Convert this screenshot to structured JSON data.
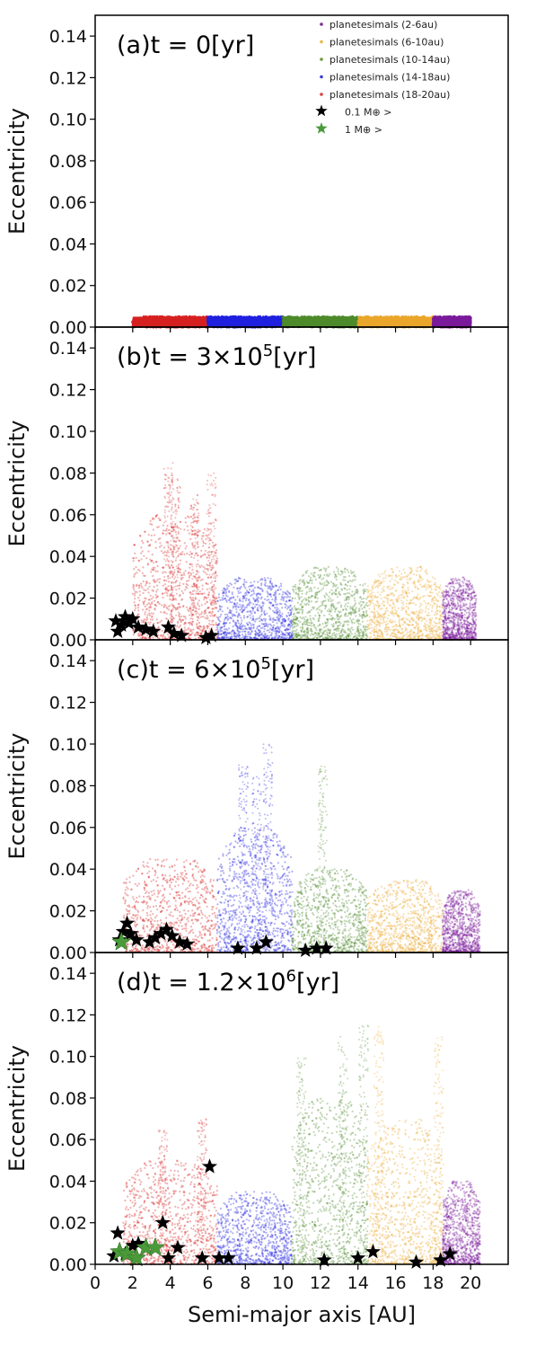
{
  "figure": {
    "xlabel": "Semi-major axis [AU]",
    "ylabel": "Eccentricity"
  },
  "legend": [
    {
      "label": "planetesimals (2-6au)",
      "color": "#7b2d8e",
      "marker": "dot"
    },
    {
      "label": "planetesimals (6-10au)",
      "color": "#e8b84a",
      "marker": "dot"
    },
    {
      "label": "planetesimals (10-14au)",
      "color": "#6b9a3a",
      "marker": "dot"
    },
    {
      "label": "planetesimals (14-18au)",
      "color": "#3a3ad8",
      "marker": "dot"
    },
    {
      "label": "planetesimals (18-20au)",
      "color": "#d94040",
      "marker": "dot"
    },
    {
      "label": "0.1 M⊕ >",
      "color": "#000000",
      "marker": "star"
    },
    {
      "label": "1 M⊕ >",
      "color": "#4a9a3a",
      "marker": "star"
    }
  ],
  "chart_data": [
    {
      "type": "scatter",
      "panel_label": "(a)t = 0[yr]",
      "xlim": [
        0,
        22
      ],
      "ylim": [
        0,
        0.15
      ],
      "xticks": [
        "0",
        "2",
        "4",
        "6",
        "8",
        "10",
        "12",
        "14",
        "16",
        "18",
        "20"
      ],
      "yticks": [
        "0.00",
        "0.02",
        "0.04",
        "0.06",
        "0.08",
        "0.10",
        "0.12",
        "0.14"
      ],
      "bands": [
        {
          "x_range": [
            2,
            6
          ],
          "color": "#d62020",
          "e_max": 0.005
        },
        {
          "x_range": [
            6,
            10
          ],
          "color": "#1f1fe0",
          "e_max": 0.005
        },
        {
          "x_range": [
            10,
            14
          ],
          "color": "#4d8a2a",
          "e_max": 0.005
        },
        {
          "x_range": [
            14,
            18
          ],
          "color": "#eaa62a",
          "e_max": 0.005
        },
        {
          "x_range": [
            18,
            20
          ],
          "color": "#7a1a9a",
          "e_max": 0.005
        }
      ],
      "stars_small": [],
      "stars_large": []
    },
    {
      "type": "scatter",
      "panel_label": "(b)t = 3×10^5[yr]",
      "xlim": [
        0,
        22
      ],
      "ylim": [
        0,
        0.15
      ],
      "xticks": [
        "0",
        "2",
        "4",
        "6",
        "8",
        "10",
        "12",
        "14",
        "16",
        "18",
        "20"
      ],
      "yticks": [
        "0.00",
        "0.02",
        "0.04",
        "0.06",
        "0.08",
        "0.10",
        "0.12",
        "0.14"
      ],
      "bands": [
        {
          "x_range": [
            2,
            6.5
          ],
          "color": "#d62020",
          "e_max": 0.06,
          "spikes": [
            [
              3.9,
              0.085
            ],
            [
              4.3,
              0.078
            ],
            [
              5.3,
              0.07
            ],
            [
              6.2,
              0.08
            ]
          ]
        },
        {
          "x_range": [
            6.5,
            10.5
          ],
          "color": "#1f1fe0",
          "e_max": 0.03
        },
        {
          "x_range": [
            10.5,
            14.5
          ],
          "color": "#4d8a2a",
          "e_max": 0.035
        },
        {
          "x_range": [
            14.5,
            18.5
          ],
          "color": "#eaa62a",
          "e_max": 0.035
        },
        {
          "x_range": [
            18.5,
            20.3
          ],
          "color": "#7a1a9a",
          "e_max": 0.03
        }
      ],
      "stars_small": [
        [
          1.1,
          0.009
        ],
        [
          1.2,
          0.004
        ],
        [
          1.4,
          0.007
        ],
        [
          1.6,
          0.011
        ],
        [
          1.8,
          0.008
        ],
        [
          2.0,
          0.01
        ],
        [
          2.3,
          0.006
        ],
        [
          2.7,
          0.005
        ],
        [
          3.1,
          0.004
        ],
        [
          3.9,
          0.006
        ],
        [
          4.2,
          0.003
        ],
        [
          4.6,
          0.002
        ],
        [
          5.9,
          0.001
        ],
        [
          6.2,
          0.002
        ]
      ],
      "stars_large": []
    },
    {
      "type": "scatter",
      "panel_label": "(c)t = 6×10^5[yr]",
      "xlim": [
        0,
        22
      ],
      "ylim": [
        0,
        0.15
      ],
      "xticks": [
        "0",
        "2",
        "4",
        "6",
        "8",
        "10",
        "12",
        "14",
        "16",
        "18",
        "20"
      ],
      "yticks": [
        "0.00",
        "0.02",
        "0.04",
        "0.06",
        "0.08",
        "0.10",
        "0.12",
        "0.14"
      ],
      "bands": [
        {
          "x_range": [
            1.5,
            6.5
          ],
          "color": "#d62020",
          "e_max": 0.045
        },
        {
          "x_range": [
            6.5,
            10.5
          ],
          "color": "#1f1fe0",
          "e_max": 0.06,
          "spikes": [
            [
              7.9,
              0.09
            ],
            [
              8.6,
              0.085
            ],
            [
              9.2,
              0.1
            ]
          ]
        },
        {
          "x_range": [
            10.5,
            14.5
          ],
          "color": "#4d8a2a",
          "e_max": 0.04,
          "spikes": [
            [
              12.1,
              0.09
            ]
          ]
        },
        {
          "x_range": [
            14.5,
            18.5
          ],
          "color": "#eaa62a",
          "e_max": 0.035
        },
        {
          "x_range": [
            18.5,
            20.5
          ],
          "color": "#7a1a9a",
          "e_max": 0.03
        }
      ],
      "stars_small": [
        [
          1.3,
          0.006
        ],
        [
          1.5,
          0.01
        ],
        [
          1.7,
          0.014
        ],
        [
          1.9,
          0.009
        ],
        [
          2.2,
          0.006
        ],
        [
          2.9,
          0.005
        ],
        [
          3.2,
          0.007
        ],
        [
          3.5,
          0.009
        ],
        [
          3.8,
          0.011
        ],
        [
          4.1,
          0.008
        ],
        [
          4.5,
          0.005
        ],
        [
          4.9,
          0.004
        ],
        [
          7.6,
          0.002
        ],
        [
          8.6,
          0.002
        ],
        [
          9.1,
          0.005
        ],
        [
          11.2,
          0.001
        ],
        [
          11.8,
          0.002
        ],
        [
          12.3,
          0.002
        ]
      ],
      "stars_large": [
        [
          1.4,
          0.005
        ]
      ]
    },
    {
      "type": "scatter",
      "panel_label": "(d)t = 1.2×10^6[yr]",
      "xlim": [
        0,
        22
      ],
      "ylim": [
        0,
        0.15
      ],
      "xticks": [
        "0",
        "2",
        "4",
        "6",
        "8",
        "10",
        "12",
        "14",
        "16",
        "18",
        "20"
      ],
      "yticks": [
        "0.00",
        "0.02",
        "0.04",
        "0.06",
        "0.08",
        "0.10",
        "0.12",
        "0.14"
      ],
      "bands": [
        {
          "x_range": [
            1.5,
            6.5
          ],
          "color": "#d62020",
          "e_max": 0.05,
          "spikes": [
            [
              3.6,
              0.065
            ],
            [
              5.7,
              0.07
            ]
          ]
        },
        {
          "x_range": [
            6.5,
            10.5
          ],
          "color": "#1f1fe0",
          "e_max": 0.035
        },
        {
          "x_range": [
            10.5,
            14.5
          ],
          "color": "#4d8a2a",
          "e_max": 0.08,
          "spikes": [
            [
              11.0,
              0.1
            ],
            [
              13.2,
              0.11
            ],
            [
              14.3,
              0.115
            ]
          ]
        },
        {
          "x_range": [
            14.5,
            18.5
          ],
          "color": "#eaa62a",
          "e_max": 0.07,
          "spikes": [
            [
              15.1,
              0.115
            ],
            [
              18.3,
              0.11
            ]
          ]
        },
        {
          "x_range": [
            18.5,
            20.5
          ],
          "color": "#7a1a9a",
          "e_max": 0.04
        }
      ],
      "stars_small": [
        [
          1.0,
          0.004
        ],
        [
          1.2,
          0.015
        ],
        [
          1.6,
          0.005
        ],
        [
          2.0,
          0.009
        ],
        [
          2.3,
          0.01
        ],
        [
          3.6,
          0.02
        ],
        [
          3.9,
          0.003
        ],
        [
          4.4,
          0.008
        ],
        [
          5.7,
          0.003
        ],
        [
          6.1,
          0.047
        ],
        [
          6.6,
          0.003
        ],
        [
          7.1,
          0.003
        ],
        [
          12.2,
          0.002
        ],
        [
          14.0,
          0.003
        ],
        [
          14.8,
          0.006
        ],
        [
          17.1,
          0.001
        ],
        [
          18.4,
          0.002
        ],
        [
          18.9,
          0.005
        ]
      ],
      "stars_large": [
        [
          1.3,
          0.006
        ],
        [
          1.7,
          0.005
        ],
        [
          2.2,
          0.003
        ],
        [
          2.7,
          0.008
        ],
        [
          3.2,
          0.008
        ]
      ]
    }
  ]
}
